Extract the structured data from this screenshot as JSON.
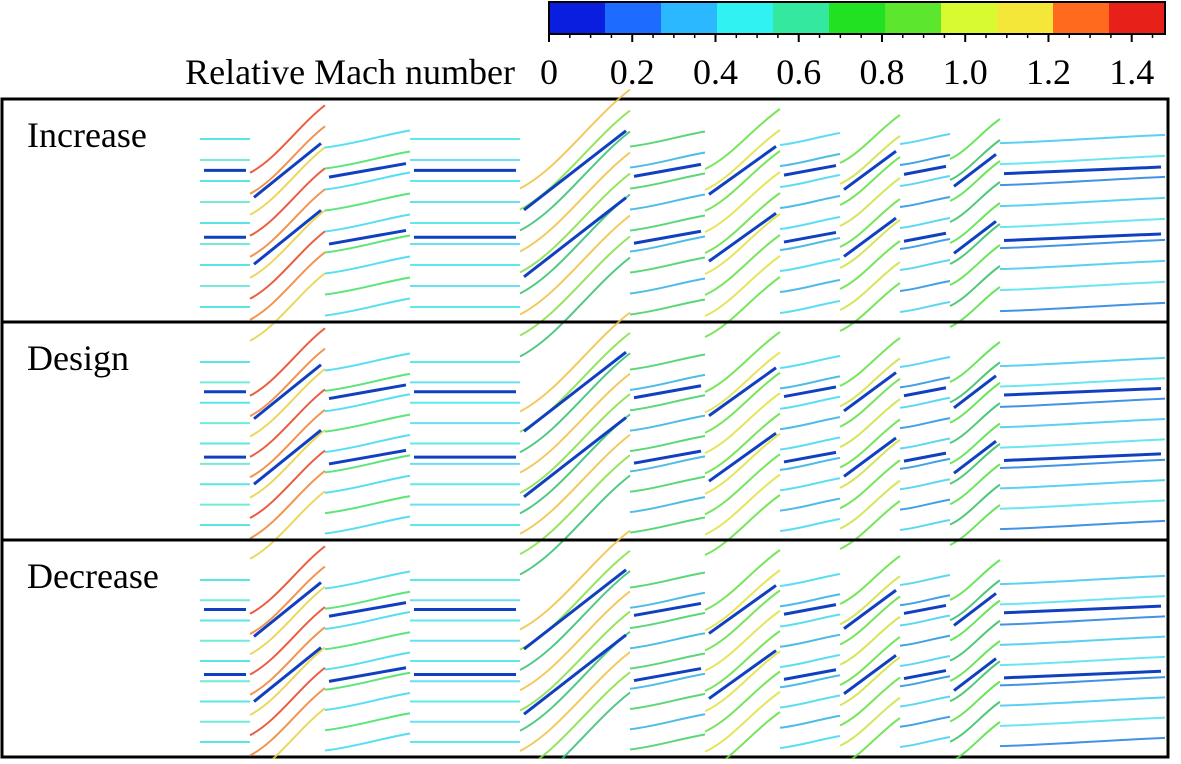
{
  "colorbar": {
    "label": "Relative Mach number",
    "range": [
      0,
      1.48
    ],
    "ticks": [
      0,
      0.2,
      0.4,
      0.6,
      0.8,
      {
        "value": 1,
        "label": "1.0"
      },
      1.2,
      1.4
    ],
    "colors": [
      "#0a1ee0",
      "#1e6cff",
      "#2cb8ff",
      "#30f2f2",
      "#34e8a0",
      "#22e022",
      "#5ce62e",
      "#d8fa30",
      "#f5e63a",
      "#ff6a1e",
      "#e8201a"
    ]
  },
  "panels": [
    {
      "label": "Increase"
    },
    {
      "label": "Design"
    },
    {
      "label": "Decrease"
    }
  ]
}
